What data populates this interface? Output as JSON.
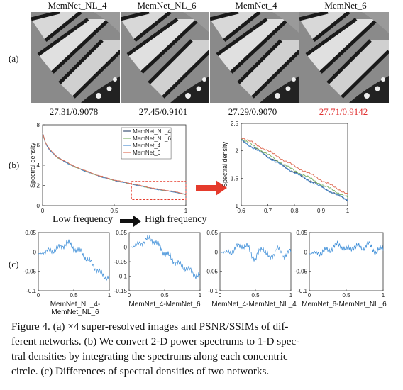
{
  "row_a": {
    "tag": "(a)",
    "titles": [
      "MemNet_NL_4",
      "MemNet_NL_6",
      "MemNet_4",
      "MemNet_6"
    ],
    "metrics": [
      "27.31/0.9078",
      "27.45/0.9101",
      "27.29/0.9070",
      "27.71/0.9142"
    ],
    "highlight_color": "#e03030"
  },
  "row_b": {
    "tag": "(b)",
    "low_label": "Low frequency",
    "high_label": "High frequency",
    "arrow_color": "#e53b2c"
  },
  "row_c": {
    "tag": "(c)",
    "xlabels": [
      "MemNet_NL_4-MemNet_NL_6",
      "MemNet_4-MemNet_6",
      "MemNet_4-MemNet_NL_4",
      "MemNet_6-MemNet_NL_6"
    ]
  },
  "caption": {
    "lines": [
      "Figure 4. (a) ×4 super-resolved images and PSNR/SSIMs of dif-",
      "ferent networks. (b) We convert 2-D power spectrums to 1-D spec-",
      "tral densities by integrating the spectrums along each concentric",
      "circle. (c) Differences of spectral densities of two networks."
    ]
  },
  "chart_data": [
    {
      "type": "line",
      "ylabel": "Spectral density",
      "xlim": [
        0,
        1
      ],
      "ylim": [
        0,
        8
      ],
      "x_ticks": [
        "0",
        "0.5",
        "1"
      ],
      "y_ticks": [
        "0",
        "2",
        "4",
        "6",
        "8"
      ],
      "legend": "top-right",
      "series": [
        {
          "name": "MemNet_NL_4",
          "color": "#3a4f73"
        },
        {
          "name": "MemNet_NL_6",
          "color": "#7fb36a"
        },
        {
          "name": "MemNet_4",
          "color": "#4e8fd1"
        },
        {
          "name": "MemNet_6",
          "color": "#e0715a"
        }
      ],
      "x": [
        0,
        0.02,
        0.05,
        0.1,
        0.2,
        0.3,
        0.4,
        0.5,
        0.6,
        0.7,
        0.8,
        0.9,
        1.0
      ],
      "y": [
        7.2,
        6.2,
        5.5,
        4.8,
        4.0,
        3.4,
        2.9,
        2.5,
        2.2,
        1.9,
        1.6,
        1.4,
        1.1
      ]
    },
    {
      "type": "line",
      "ylabel": "Spectral density",
      "xlim": [
        0.6,
        1
      ],
      "ylim": [
        1,
        2.5
      ],
      "x_ticks": [
        "0.6",
        "0.7",
        "0.8",
        "0.9",
        "1"
      ],
      "y_ticks": [
        "1",
        "1.5",
        "2",
        "2.5"
      ],
      "x": [
        0.6,
        0.65,
        0.7,
        0.75,
        0.8,
        0.85,
        0.9,
        0.95,
        1.0
      ],
      "series": [
        {
          "name": "MemNet_NL_4",
          "color": "#3a4f73",
          "values": [
            2.2,
            2.05,
            1.9,
            1.75,
            1.6,
            1.48,
            1.35,
            1.22,
            1.1
          ]
        },
        {
          "name": "MemNet_NL_6",
          "color": "#7fb36a",
          "values": [
            2.22,
            2.08,
            1.93,
            1.78,
            1.64,
            1.52,
            1.39,
            1.27,
            1.15
          ]
        },
        {
          "name": "MemNet_4",
          "color": "#4e8fd1",
          "values": [
            2.19,
            2.04,
            1.89,
            1.74,
            1.6,
            1.47,
            1.34,
            1.22,
            1.1
          ]
        },
        {
          "name": "MemNet_6",
          "color": "#e0715a",
          "values": [
            2.25,
            2.13,
            2.0,
            1.86,
            1.72,
            1.6,
            1.47,
            1.34,
            1.21
          ]
        }
      ]
    },
    {
      "type": "line",
      "xlim": [
        0,
        1
      ],
      "ylim": [
        -0.1,
        0.05
      ],
      "x_ticks": [
        "0",
        "0.5",
        "1"
      ],
      "y_ticks": [
        "-0.1",
        "-0.05",
        "0",
        "0.05"
      ],
      "x": [
        0,
        0.1,
        0.2,
        0.3,
        0.4,
        0.5,
        0.6,
        0.7,
        0.8,
        0.9,
        1.0
      ],
      "values": [
        -0.005,
        0.0,
        0.005,
        0.01,
        0.025,
        0.01,
        0.0,
        -0.02,
        -0.04,
        -0.06,
        -0.065
      ]
    },
    {
      "type": "line",
      "xlim": [
        0,
        1
      ],
      "ylim": [
        -0.15,
        0.05
      ],
      "x_ticks": [
        "0",
        "0.5",
        "1"
      ],
      "y_ticks": [
        "-0.15",
        "-0.1",
        "-0.05",
        "0",
        "0.05"
      ],
      "x": [
        0,
        0.1,
        0.2,
        0.3,
        0.4,
        0.5,
        0.6,
        0.7,
        0.8,
        0.9,
        1.0
      ],
      "values": [
        0.0,
        0.005,
        0.02,
        0.03,
        0.01,
        -0.02,
        -0.04,
        -0.06,
        -0.07,
        -0.09,
        -0.1
      ]
    },
    {
      "type": "line",
      "xlim": [
        0,
        1
      ],
      "ylim": [
        -0.1,
        0.05
      ],
      "x_ticks": [
        "0",
        "0.5",
        "1"
      ],
      "y_ticks": [
        "-0.1",
        "-0.05",
        "0",
        "0.05"
      ],
      "x": [
        0,
        0.1,
        0.2,
        0.3,
        0.4,
        0.5,
        0.6,
        0.7,
        0.8,
        0.9,
        1.0
      ],
      "values": [
        0.0,
        -0.002,
        0.005,
        0.02,
        0.01,
        -0.02,
        0.015,
        -0.02,
        0.01,
        -0.01,
        0.0
      ]
    },
    {
      "type": "line",
      "xlim": [
        0,
        1
      ],
      "ylim": [
        -0.1,
        0.05
      ],
      "x_ticks": [
        "0",
        "0.5",
        "1"
      ],
      "y_ticks": [
        "-0.1",
        "-0.05",
        "0",
        "0.05"
      ],
      "x": [
        0,
        0.1,
        0.2,
        0.3,
        0.4,
        0.5,
        0.6,
        0.7,
        0.8,
        0.9,
        1.0
      ],
      "values": [
        -0.005,
        -0.002,
        0.0,
        0.01,
        0.02,
        0.005,
        0.015,
        0.01,
        0.02,
        0.0,
        0.01
      ]
    }
  ]
}
